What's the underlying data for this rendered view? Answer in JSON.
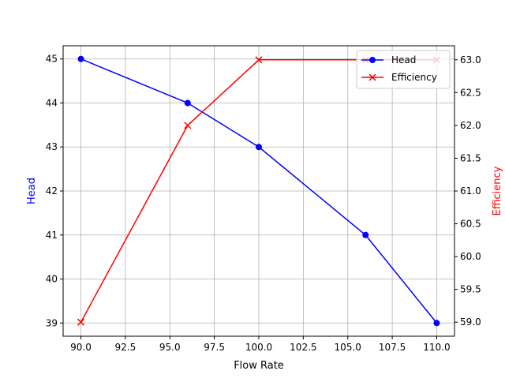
{
  "chart_data": {
    "type": "line",
    "title": "",
    "xlabel": "Flow Rate",
    "ylabel": "Head",
    "y2label": "Efficiency",
    "x": [
      90,
      96,
      100,
      106,
      110
    ],
    "xlim": [
      89,
      111
    ],
    "ylim": [
      38.7,
      45.3
    ],
    "y2lim": [
      58.786,
      63.214
    ],
    "xticks": [
      "90.0",
      "92.5",
      "95.0",
      "97.5",
      "100.0",
      "102.5",
      "105.0",
      "107.5",
      "110.0"
    ],
    "yticks": [
      "39",
      "40",
      "41",
      "42",
      "43",
      "44",
      "45"
    ],
    "y2ticks": [
      "59.0",
      "59.5",
      "60.0",
      "60.5",
      "61.0",
      "61.5",
      "62.0",
      "62.5",
      "63.0"
    ],
    "grid": true,
    "legend_position": "upper right",
    "series": [
      {
        "name": "Head",
        "axis": "left",
        "color": "#0000ff",
        "marker": "o",
        "values": [
          45,
          44,
          43,
          41,
          39
        ]
      },
      {
        "name": "Efficiency",
        "axis": "right",
        "color": "#ff0000",
        "marker": "x",
        "values": [
          59,
          62,
          63,
          63,
          63
        ]
      }
    ]
  }
}
